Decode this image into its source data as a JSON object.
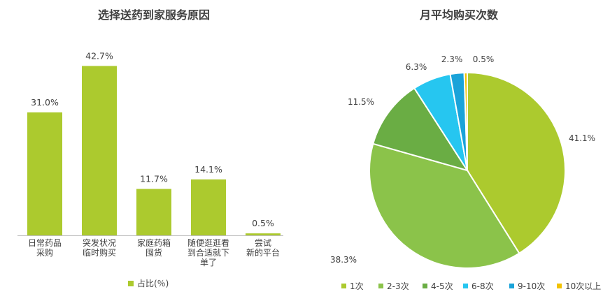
{
  "chart_data": [
    {
      "type": "bar",
      "title": "选择送药到家服务原因",
      "categories": [
        [
          "日常药品",
          "采购"
        ],
        [
          "突发状况",
          "临时购买"
        ],
        [
          "家庭药箱",
          "囤货"
        ],
        [
          "随便逛逛看",
          "到合适就下",
          "单了"
        ],
        [
          "尝试",
          "新的平台"
        ]
      ],
      "series": [
        {
          "name": "占比(％)",
          "values": [
            31.0,
            42.7,
            11.7,
            14.1,
            0.5
          ]
        }
      ],
      "data_labels": [
        "31.0%",
        "42.7%",
        "11.7%",
        "14.1%",
        "0.5%"
      ],
      "color": "#acca2e",
      "legend": "bottom",
      "grid": false
    },
    {
      "type": "pie",
      "title": "月平均购买次数",
      "slices": [
        {
          "label": "1次",
          "value": 41.1,
          "text": "41.1%",
          "color": "#acca2e"
        },
        {
          "label": "2-3次",
          "value": 38.3,
          "text": "38.3%",
          "color": "#8bc34a"
        },
        {
          "label": "4-5次",
          "value": 11.5,
          "text": "11.5%",
          "color": "#6aad44"
        },
        {
          "label": "6-8次",
          "value": 6.3,
          "text": "6.3%",
          "color": "#26c6f0"
        },
        {
          "label": "9-10次",
          "value": 2.3,
          "text": "2.3%",
          "color": "#1aa3d9"
        },
        {
          "label": "10次以上",
          "value": 0.5,
          "text": "0.5%",
          "color": "#f2c200"
        }
      ],
      "legend": "bottom"
    }
  ]
}
